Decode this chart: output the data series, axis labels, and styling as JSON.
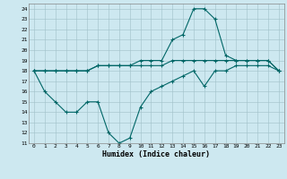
{
  "xlabel": "Humidex (Indice chaleur)",
  "bg_color": "#cde8f0",
  "grid_color": "#a0c0c8",
  "line_color": "#006666",
  "xlim": [
    -0.5,
    23.5
  ],
  "ylim": [
    11,
    24.5
  ],
  "yticks": [
    11,
    12,
    13,
    14,
    15,
    16,
    17,
    18,
    19,
    20,
    21,
    22,
    23,
    24
  ],
  "xticks": [
    0,
    1,
    2,
    3,
    4,
    5,
    6,
    7,
    8,
    9,
    10,
    11,
    12,
    13,
    14,
    15,
    16,
    17,
    18,
    19,
    20,
    21,
    22,
    23
  ],
  "line1_x": [
    0,
    1,
    2,
    3,
    4,
    5,
    6,
    7,
    8,
    9,
    10,
    11,
    12,
    13,
    14,
    15,
    16,
    17,
    18,
    19,
    20,
    21,
    22,
    23
  ],
  "line1_y": [
    18,
    16,
    15,
    14,
    14,
    15,
    15,
    12,
    11,
    11.5,
    14.5,
    16,
    16.5,
    17,
    17.5,
    18,
    16.5,
    18,
    18,
    18.5,
    18.5,
    18.5,
    18.5,
    18
  ],
  "line2_x": [
    0,
    1,
    2,
    3,
    4,
    5,
    6,
    7,
    8,
    9,
    10,
    11,
    12,
    13,
    14,
    15,
    16,
    17,
    18,
    19,
    20,
    21,
    22,
    23
  ],
  "line2_y": [
    18,
    18,
    18,
    18,
    18,
    18,
    18.5,
    18.5,
    18.5,
    18.5,
    18.5,
    18.5,
    18.5,
    19,
    19,
    19,
    19,
    19,
    19,
    19,
    19,
    19,
    19,
    18
  ],
  "line3_x": [
    0,
    1,
    2,
    3,
    4,
    5,
    6,
    7,
    8,
    9,
    10,
    11,
    12,
    13,
    14,
    15,
    16,
    17,
    18,
    19,
    20,
    21,
    22,
    23
  ],
  "line3_y": [
    18,
    18,
    18,
    18,
    18,
    18,
    18.5,
    18.5,
    18.5,
    18.5,
    19,
    19,
    19,
    21,
    21.5,
    24,
    24,
    23,
    19.5,
    19,
    19,
    19,
    19,
    18
  ]
}
